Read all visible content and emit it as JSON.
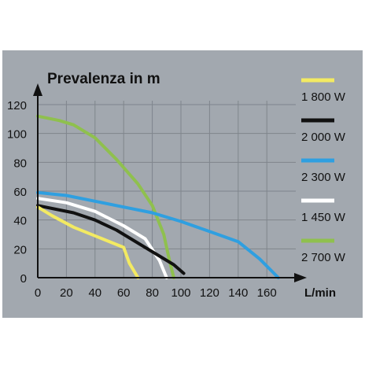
{
  "chart_data": {
    "type": "line",
    "title": "Prevalenza in m",
    "xlabel": "L/min",
    "ylabel": "",
    "xlim": [
      0,
      175
    ],
    "ylim": [
      0,
      125
    ],
    "x_ticks": [
      "0",
      "20",
      "40",
      "60",
      "80",
      "100",
      "120",
      "140",
      "160"
    ],
    "y_ticks": [
      "0",
      "20",
      "40",
      "60",
      "80",
      "100",
      "120"
    ],
    "grid": true,
    "legend_position": "right",
    "colors": {
      "background": "#a2a8af",
      "grid": "#7f858c",
      "axis": "#111111"
    },
    "series": [
      {
        "name": "1 800 W",
        "color": "#f3ea62",
        "points": [
          [
            0,
            49
          ],
          [
            10,
            43
          ],
          [
            25,
            35
          ],
          [
            45,
            27
          ],
          [
            60,
            21
          ],
          [
            64,
            10
          ],
          [
            70,
            0
          ]
        ]
      },
      {
        "name": "2 000 W",
        "color": "#111111",
        "points": [
          [
            0,
            50
          ],
          [
            10,
            48
          ],
          [
            25,
            45
          ],
          [
            40,
            40
          ],
          [
            55,
            33
          ],
          [
            70,
            24
          ],
          [
            85,
            15
          ],
          [
            95,
            9
          ],
          [
            102,
            3
          ]
        ]
      },
      {
        "name": "2 300 W",
        "color": "#2f9fe0",
        "points": [
          [
            0,
            59
          ],
          [
            20,
            57
          ],
          [
            40,
            53
          ],
          [
            60,
            49
          ],
          [
            80,
            45
          ],
          [
            100,
            39
          ],
          [
            120,
            32
          ],
          [
            140,
            25
          ],
          [
            155,
            13
          ],
          [
            168,
            0
          ]
        ]
      },
      {
        "name": "1 450 W",
        "color": "#ffffff",
        "points": [
          [
            0,
            55
          ],
          [
            20,
            52
          ],
          [
            40,
            46
          ],
          [
            60,
            36
          ],
          [
            75,
            27
          ],
          [
            85,
            12
          ],
          [
            90,
            0
          ]
        ]
      },
      {
        "name": "2 700 W",
        "color": "#8fc04e",
        "points": [
          [
            0,
            112
          ],
          [
            15,
            109
          ],
          [
            25,
            106
          ],
          [
            40,
            97
          ],
          [
            55,
            82
          ],
          [
            70,
            65
          ],
          [
            80,
            50
          ],
          [
            88,
            30
          ],
          [
            92,
            12
          ],
          [
            95,
            0
          ]
        ]
      }
    ]
  }
}
